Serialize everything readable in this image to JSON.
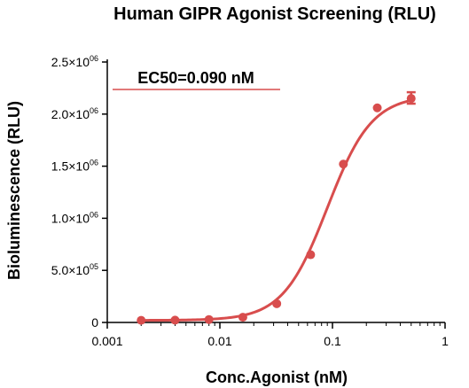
{
  "chart_data": {
    "type": "scatter",
    "title": "Human GIPR Agonist Screening  (RLU)",
    "xlabel": "Conc.Agonist (nM)",
    "ylabel": "Bioluminescence (RLU)",
    "x_scale": "log",
    "xlim": [
      0.001,
      1
    ],
    "ylim": [
      0,
      2500000
    ],
    "x_ticks": [
      {
        "value": 0.001,
        "label": "0.001"
      },
      {
        "value": 0.01,
        "label": "0.01"
      },
      {
        "value": 0.1,
        "label": "0.1"
      },
      {
        "value": 1,
        "label": "1"
      }
    ],
    "y_ticks": [
      {
        "value": 0,
        "mantissa": "0",
        "exponent": ""
      },
      {
        "value": 500000,
        "mantissa": "5.0×10",
        "exponent": "05"
      },
      {
        "value": 1000000,
        "mantissa": "1.0×10",
        "exponent": "06"
      },
      {
        "value": 1500000,
        "mantissa": "1.5×10",
        "exponent": "06"
      },
      {
        "value": 2000000,
        "mantissa": "2.0×10",
        "exponent": "06"
      },
      {
        "value": 2500000,
        "mantissa": "2.5×10",
        "exponent": "06"
      }
    ],
    "series": [
      {
        "color": "#d84d4d",
        "points": [
          {
            "x": 0.002,
            "y": 20000
          },
          {
            "x": 0.004,
            "y": 22000
          },
          {
            "x": 0.008,
            "y": 28000
          },
          {
            "x": 0.016,
            "y": 50000
          },
          {
            "x": 0.032,
            "y": 180000
          },
          {
            "x": 0.064,
            "y": 650000
          },
          {
            "x": 0.125,
            "y": 1520000
          },
          {
            "x": 0.25,
            "y": 2060000
          },
          {
            "x": 0.5,
            "y": 2150000
          }
        ],
        "error": [
          {
            "x": 0.5,
            "y_low": 2100000,
            "y_high": 2210000
          }
        ],
        "fit": {
          "bottom": 20000,
          "top": 2180000,
          "ec50": 0.09,
          "hill": 2.2
        }
      }
    ],
    "annotations": [
      {
        "text": "EC50=0.090 nM"
      }
    ],
    "grid": false,
    "legend": "none"
  }
}
